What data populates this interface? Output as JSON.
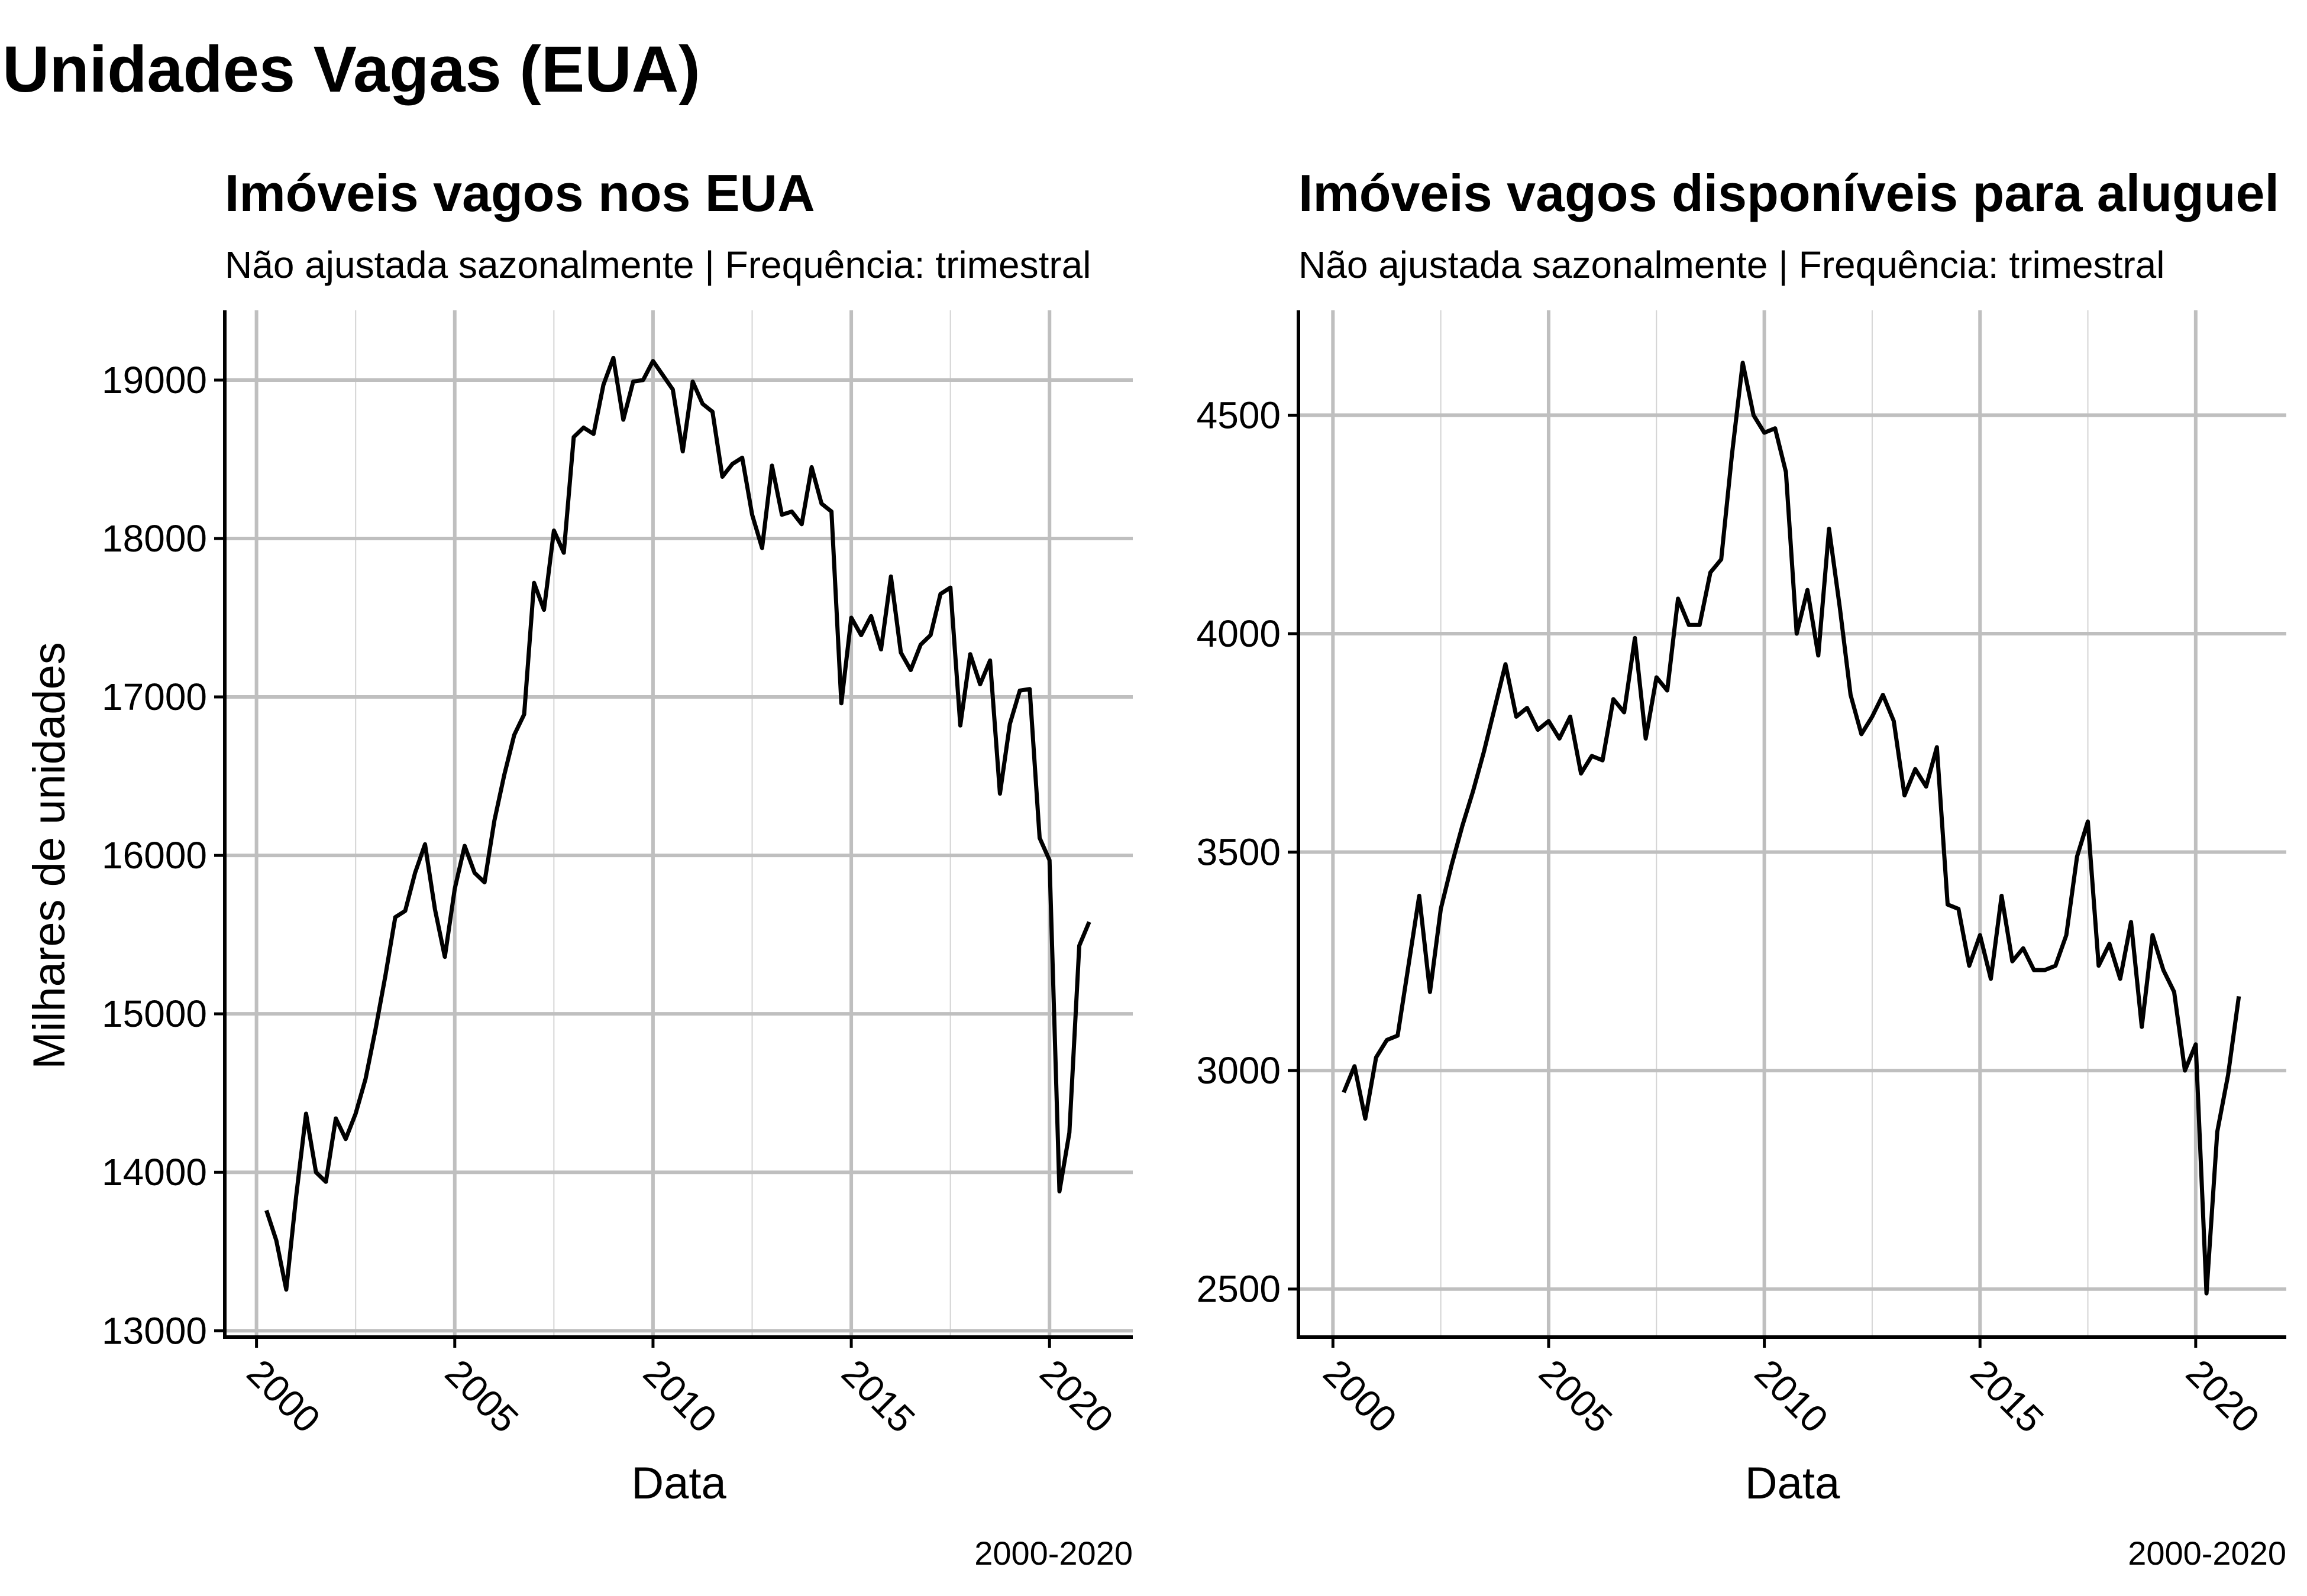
{
  "title": "Unidades Vagas (EUA)",
  "chart_data": [
    {
      "type": "line",
      "title": "Imóveis vagos nos EUA",
      "subtitle": "Não ajustada sazonalmente | Frequência: trimestral",
      "xlabel": "Data",
      "ylabel": "Milhares de unidades",
      "caption": "2000-2020",
      "xlim": [
        1999.2,
        2022.1
      ],
      "ylim": [
        12960,
        19440
      ],
      "x_ticks": [
        2000,
        2005,
        2010,
        2015,
        2020
      ],
      "x_tick_labels": [
        "2000",
        "2005",
        "2010",
        "2015",
        "2020"
      ],
      "y_ticks": [
        13000,
        14000,
        15000,
        16000,
        17000,
        18000,
        19000
      ],
      "y_tick_labels": [
        "13000",
        "14000",
        "15000",
        "16000",
        "17000",
        "18000",
        "19000"
      ],
      "grid": true,
      "series": [
        {
          "color": "#000000",
          "x_start": 2000.25,
          "x_step": 0.25,
          "values": [
            13760,
            13570,
            13260,
            13850,
            14370,
            14000,
            13940,
            14340,
            14210,
            14370,
            14590,
            14900,
            15240,
            15610,
            15650,
            15890,
            16070,
            15660,
            15360,
            15790,
            16060,
            15890,
            15830,
            16220,
            16510,
            16760,
            16890,
            17720,
            17550,
            18050,
            17910,
            18640,
            18700,
            18660,
            18970,
            19140,
            18750,
            18990,
            19000,
            19120,
            19030,
            18940,
            18550,
            18990,
            18850,
            18800,
            18390,
            18470,
            18510,
            18150,
            17940,
            18460,
            18150,
            18170,
            18090,
            18450,
            18220,
            18170,
            16960,
            17500,
            17390,
            17510,
            17300,
            17760,
            17280,
            17170,
            17330,
            17390,
            17650,
            17690,
            16820,
            17270,
            17080,
            17230,
            16390,
            16830,
            17040,
            17050,
            16110,
            15970,
            13880,
            14250,
            15430,
            15580
          ]
        }
      ]
    },
    {
      "type": "line",
      "title": "Imóveis vagos disponíveis para aluguel",
      "subtitle": "Não ajustada sazonalmente | Frequência: trimestral",
      "xlabel": "Data",
      "ylabel": "",
      "caption": "2000-2020",
      "xlim": [
        1999.2,
        2022.1
      ],
      "ylim": [
        2390,
        4740
      ],
      "x_ticks": [
        2000,
        2005,
        2010,
        2015,
        2020
      ],
      "x_tick_labels": [
        "2000",
        "2005",
        "2010",
        "2015",
        "2020"
      ],
      "y_ticks": [
        2500,
        3000,
        3500,
        4000,
        4500
      ],
      "y_tick_labels": [
        "2500",
        "3000",
        "3500",
        "4000",
        "4500"
      ],
      "grid": true,
      "series": [
        {
          "color": "#000000",
          "x_start": 2000.25,
          "x_step": 0.25,
          "values": [
            2950,
            3010,
            2890,
            3030,
            3070,
            3080,
            3240,
            3400,
            3180,
            3370,
            3470,
            3560,
            3640,
            3730,
            3830,
            3930,
            3810,
            3830,
            3780,
            3800,
            3760,
            3810,
            3680,
            3720,
            3710,
            3850,
            3820,
            3990,
            3760,
            3900,
            3870,
            4080,
            4020,
            4020,
            4140,
            4170,
            4410,
            4620,
            4500,
            4460,
            4470,
            4370,
            4000,
            4100,
            3950,
            4240,
            4060,
            3860,
            3770,
            3810,
            3860,
            3800,
            3630,
            3690,
            3650,
            3740,
            3380,
            3370,
            3240,
            3310,
            3210,
            3400,
            3250,
            3280,
            3230,
            3230,
            3240,
            3310,
            3490,
            3570,
            3240,
            3290,
            3210,
            3340,
            3100,
            3310,
            3230,
            3180,
            3000,
            3060,
            2490,
            2860,
            2990,
            3170
          ]
        }
      ]
    }
  ]
}
